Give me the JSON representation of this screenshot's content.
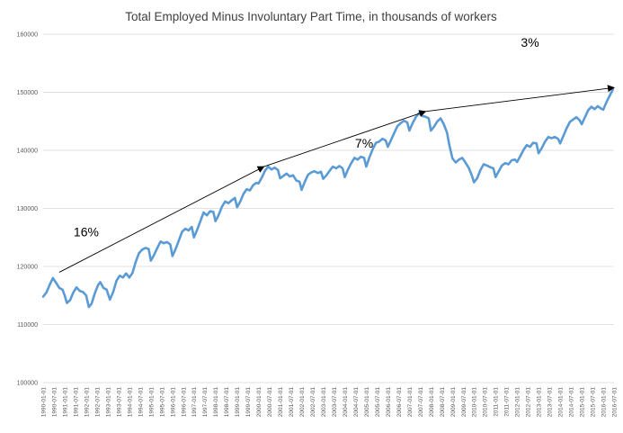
{
  "chart_data": {
    "type": "line",
    "title": "Total Employed Minus Involuntary Part Time, in thousands of workers",
    "xlabel": "",
    "ylabel": "",
    "ylim": [
      100000,
      160000
    ],
    "yticks": [
      100000,
      110000,
      120000,
      130000,
      140000,
      150000,
      160000
    ],
    "grid": "horizontal",
    "series_color": "#5b9bd5",
    "xlim_years": [
      1990.0,
      2016.5
    ],
    "x_tick_labels": [
      "1990-01-01",
      "1990-07-01",
      "1991-01-01",
      "1991-07-01",
      "1992-01-01",
      "1992-07-01",
      "1993-01-01",
      "1993-07-01",
      "1994-01-01",
      "1994-07-01",
      "1995-01-01",
      "1995-07-01",
      "1996-01-01",
      "1996-07-01",
      "1997-01-01",
      "1997-07-01",
      "1998-01-01",
      "1998-07-01",
      "1999-01-01",
      "1999-07-01",
      "2000-01-01",
      "2000-07-01",
      "2001-01-01",
      "2001-07-01",
      "2002-01-01",
      "2002-07-01",
      "2003-01-01",
      "2003-07-01",
      "2004-01-01",
      "2004-07-01",
      "2005-01-01",
      "2005-07-01",
      "2006-01-01",
      "2006-07-01",
      "2007-01-01",
      "2007-07-01",
      "2008-01-01",
      "2008-07-01",
      "2009-01-01",
      "2009-07-01",
      "2010-01-01",
      "2010-07-01",
      "2011-01-01",
      "2011-07-01",
      "2012-01-01",
      "2012-07-01",
      "2013-01-01",
      "2013-07-01",
      "2014-01-01",
      "2014-07-01",
      "2015-01-01",
      "2015-07-01",
      "2016-01-01",
      "2016-07-01"
    ],
    "series": [
      {
        "name": "Total Employed Minus Involuntary Part Time",
        "points": [
          [
            1990.0,
            114800
          ],
          [
            1990.15,
            115500
          ],
          [
            1990.3,
            116800
          ],
          [
            1990.45,
            118000
          ],
          [
            1990.6,
            117200
          ],
          [
            1990.75,
            116300
          ],
          [
            1990.9,
            116000
          ],
          [
            1991.0,
            115000
          ],
          [
            1991.1,
            113700
          ],
          [
            1991.25,
            114200
          ],
          [
            1991.4,
            115500
          ],
          [
            1991.55,
            116400
          ],
          [
            1991.7,
            115800
          ],
          [
            1991.85,
            115600
          ],
          [
            1992.0,
            115000
          ],
          [
            1992.12,
            113000
          ],
          [
            1992.25,
            113600
          ],
          [
            1992.4,
            115400
          ],
          [
            1992.55,
            116800
          ],
          [
            1992.65,
            117300
          ],
          [
            1992.8,
            116300
          ],
          [
            1992.95,
            116000
          ],
          [
            1993.0,
            115400
          ],
          [
            1993.1,
            114300
          ],
          [
            1993.25,
            115600
          ],
          [
            1993.4,
            117500
          ],
          [
            1993.55,
            118400
          ],
          [
            1993.7,
            118100
          ],
          [
            1993.85,
            118800
          ],
          [
            1994.0,
            118100
          ],
          [
            1994.15,
            118900
          ],
          [
            1994.3,
            120800
          ],
          [
            1994.45,
            122300
          ],
          [
            1994.6,
            122900
          ],
          [
            1994.75,
            123200
          ],
          [
            1994.9,
            123000
          ],
          [
            1995.0,
            121000
          ],
          [
            1995.15,
            122000
          ],
          [
            1995.3,
            123200
          ],
          [
            1995.45,
            124300
          ],
          [
            1995.6,
            124000
          ],
          [
            1995.75,
            124200
          ],
          [
            1995.9,
            123800
          ],
          [
            1996.0,
            121800
          ],
          [
            1996.15,
            123000
          ],
          [
            1996.3,
            124500
          ],
          [
            1996.45,
            126000
          ],
          [
            1996.6,
            126500
          ],
          [
            1996.75,
            126200
          ],
          [
            1996.9,
            126800
          ],
          [
            1997.0,
            125000
          ],
          [
            1997.15,
            126300
          ],
          [
            1997.3,
            127800
          ],
          [
            1997.45,
            129300
          ],
          [
            1997.6,
            128800
          ],
          [
            1997.75,
            129500
          ],
          [
            1997.9,
            129400
          ],
          [
            1998.0,
            127800
          ],
          [
            1998.15,
            128900
          ],
          [
            1998.3,
            130300
          ],
          [
            1998.45,
            131200
          ],
          [
            1998.6,
            130900
          ],
          [
            1998.75,
            131400
          ],
          [
            1998.9,
            131800
          ],
          [
            1999.0,
            130200
          ],
          [
            1999.15,
            131200
          ],
          [
            1999.3,
            132500
          ],
          [
            1999.45,
            133300
          ],
          [
            1999.6,
            133100
          ],
          [
            1999.75,
            134000
          ],
          [
            1999.9,
            134400
          ],
          [
            2000.0,
            134300
          ],
          [
            2000.15,
            135300
          ],
          [
            2000.3,
            136500
          ],
          [
            2000.45,
            137200
          ],
          [
            2000.6,
            136700
          ],
          [
            2000.75,
            137000
          ],
          [
            2000.9,
            136600
          ],
          [
            2001.0,
            135200
          ],
          [
            2001.15,
            135600
          ],
          [
            2001.3,
            136000
          ],
          [
            2001.45,
            135500
          ],
          [
            2001.6,
            135700
          ],
          [
            2001.75,
            134800
          ],
          [
            2001.9,
            134600
          ],
          [
            2002.0,
            133200
          ],
          [
            2002.15,
            134600
          ],
          [
            2002.3,
            135800
          ],
          [
            2002.45,
            136200
          ],
          [
            2002.6,
            136400
          ],
          [
            2002.75,
            136100
          ],
          [
            2002.9,
            136300
          ],
          [
            2003.0,
            135100
          ],
          [
            2003.15,
            135700
          ],
          [
            2003.3,
            136500
          ],
          [
            2003.45,
            137200
          ],
          [
            2003.6,
            136900
          ],
          [
            2003.75,
            137300
          ],
          [
            2003.9,
            136900
          ],
          [
            2004.0,
            135400
          ],
          [
            2004.15,
            136700
          ],
          [
            2004.3,
            137800
          ],
          [
            2004.45,
            138700
          ],
          [
            2004.6,
            138400
          ],
          [
            2004.75,
            138900
          ],
          [
            2004.9,
            138700
          ],
          [
            2005.0,
            137200
          ],
          [
            2005.15,
            138800
          ],
          [
            2005.3,
            140200
          ],
          [
            2005.45,
            141300
          ],
          [
            2005.6,
            141500
          ],
          [
            2005.75,
            142000
          ],
          [
            2005.9,
            141700
          ],
          [
            2006.0,
            140600
          ],
          [
            2006.15,
            141800
          ],
          [
            2006.3,
            143000
          ],
          [
            2006.45,
            144200
          ],
          [
            2006.6,
            144700
          ],
          [
            2006.75,
            145100
          ],
          [
            2006.9,
            144800
          ],
          [
            2007.0,
            143400
          ],
          [
            2007.15,
            144700
          ],
          [
            2007.3,
            145700
          ],
          [
            2007.45,
            146400
          ],
          [
            2007.6,
            145900
          ],
          [
            2007.75,
            145800
          ],
          [
            2007.9,
            145500
          ],
          [
            2008.0,
            143400
          ],
          [
            2008.15,
            144100
          ],
          [
            2008.3,
            145000
          ],
          [
            2008.45,
            145500
          ],
          [
            2008.6,
            144500
          ],
          [
            2008.75,
            143000
          ],
          [
            2008.85,
            141000
          ],
          [
            2009.0,
            138600
          ],
          [
            2009.15,
            137900
          ],
          [
            2009.3,
            138400
          ],
          [
            2009.45,
            138700
          ],
          [
            2009.55,
            138200
          ],
          [
            2009.75,
            137000
          ],
          [
            2009.9,
            135700
          ],
          [
            2010.0,
            134500
          ],
          [
            2010.15,
            135200
          ],
          [
            2010.3,
            136600
          ],
          [
            2010.45,
            137600
          ],
          [
            2010.6,
            137400
          ],
          [
            2010.75,
            137100
          ],
          [
            2010.9,
            136900
          ],
          [
            2011.0,
            135400
          ],
          [
            2011.15,
            136400
          ],
          [
            2011.3,
            137400
          ],
          [
            2011.45,
            137800
          ],
          [
            2011.6,
            137600
          ],
          [
            2011.75,
            138300
          ],
          [
            2011.9,
            138400
          ],
          [
            2012.0,
            138000
          ],
          [
            2012.15,
            139000
          ],
          [
            2012.3,
            140100
          ],
          [
            2012.45,
            140900
          ],
          [
            2012.6,
            140600
          ],
          [
            2012.75,
            141300
          ],
          [
            2012.9,
            141200
          ],
          [
            2013.0,
            139500
          ],
          [
            2013.15,
            140400
          ],
          [
            2013.3,
            141500
          ],
          [
            2013.45,
            142300
          ],
          [
            2013.6,
            142100
          ],
          [
            2013.75,
            142300
          ],
          [
            2013.9,
            142000
          ],
          [
            2014.0,
            141200
          ],
          [
            2014.15,
            142500
          ],
          [
            2014.3,
            143800
          ],
          [
            2014.45,
            144900
          ],
          [
            2014.6,
            145300
          ],
          [
            2014.75,
            145700
          ],
          [
            2014.9,
            145200
          ],
          [
            2015.0,
            144500
          ],
          [
            2015.15,
            145700
          ],
          [
            2015.3,
            146900
          ],
          [
            2015.45,
            147500
          ],
          [
            2015.6,
            147100
          ],
          [
            2015.75,
            147600
          ],
          [
            2015.9,
            147200
          ],
          [
            2016.0,
            147000
          ],
          [
            2016.15,
            148300
          ],
          [
            2016.3,
            149400
          ],
          [
            2016.45,
            150500
          ]
        ]
      }
    ],
    "annotations": [
      {
        "text": "16%",
        "at": [
          1992.0,
          125200
        ]
      },
      {
        "text": "7%",
        "at": [
          2004.9,
          140500
        ]
      },
      {
        "text": "3%",
        "at": [
          2012.6,
          157800
        ]
      }
    ],
    "trend_arrows": [
      {
        "from": [
          1990.75,
          119000
        ],
        "to": [
          2000.25,
          137200
        ]
      },
      {
        "from": [
          2000.25,
          137200
        ],
        "to": [
          2007.75,
          146700
        ]
      },
      {
        "from": [
          2007.75,
          146700
        ],
        "to": [
          2016.5,
          150800
        ]
      }
    ]
  }
}
